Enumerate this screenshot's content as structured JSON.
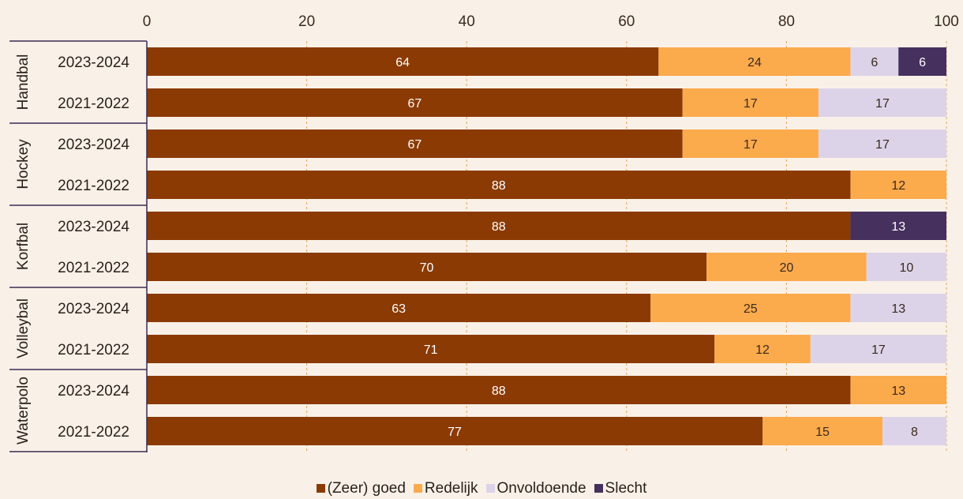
{
  "chart_data": {
    "type": "bar",
    "orientation": "horizontal",
    "stacked": true,
    "xlim": [
      0,
      100
    ],
    "xticks": [
      0,
      20,
      40,
      60,
      80,
      100
    ],
    "xaxis_position": "top",
    "grid": "vertical dashed",
    "legend_position": "bottom",
    "groups": [
      {
        "label": "Handbal",
        "rows": [
          {
            "label": "2023-2024",
            "values": [
              64,
              24,
              6,
              6
            ]
          },
          {
            "label": "2021-2022",
            "values": [
              67,
              17,
              17,
              0
            ]
          }
        ]
      },
      {
        "label": "Hockey",
        "rows": [
          {
            "label": "2023-2024",
            "values": [
              67,
              17,
              17,
              0
            ]
          },
          {
            "label": "2021-2022",
            "values": [
              88,
              12,
              0,
              0
            ]
          }
        ]
      },
      {
        "label": "Korfbal",
        "rows": [
          {
            "label": "2023-2024",
            "values": [
              88,
              0,
              0,
              13
            ]
          },
          {
            "label": "2021-2022",
            "values": [
              70,
              20,
              10,
              0
            ]
          }
        ]
      },
      {
        "label": "Volleybal",
        "rows": [
          {
            "label": "2023-2024",
            "values": [
              63,
              25,
              13,
              0
            ]
          },
          {
            "label": "2021-2022",
            "values": [
              71,
              12,
              17,
              0
            ]
          }
        ]
      },
      {
        "label": "Waterpolo",
        "rows": [
          {
            "label": "2023-2024",
            "values": [
              88,
              13,
              0,
              0
            ]
          },
          {
            "label": "2021-2022",
            "values": [
              77,
              15,
              8,
              0
            ]
          }
        ]
      }
    ],
    "series": [
      {
        "name": "(Zeer) goed",
        "color": "#8b3a03",
        "label_color": "#ffffff"
      },
      {
        "name": "Redelijk",
        "color": "#fbaa4c",
        "label_color": "#3b2a1e"
      },
      {
        "name": "Onvoldoende",
        "color": "#dcd3e8",
        "label_color": "#3b2a1e"
      },
      {
        "name": "Slecht",
        "color": "#46305e",
        "label_color": "#ffffff"
      }
    ]
  }
}
